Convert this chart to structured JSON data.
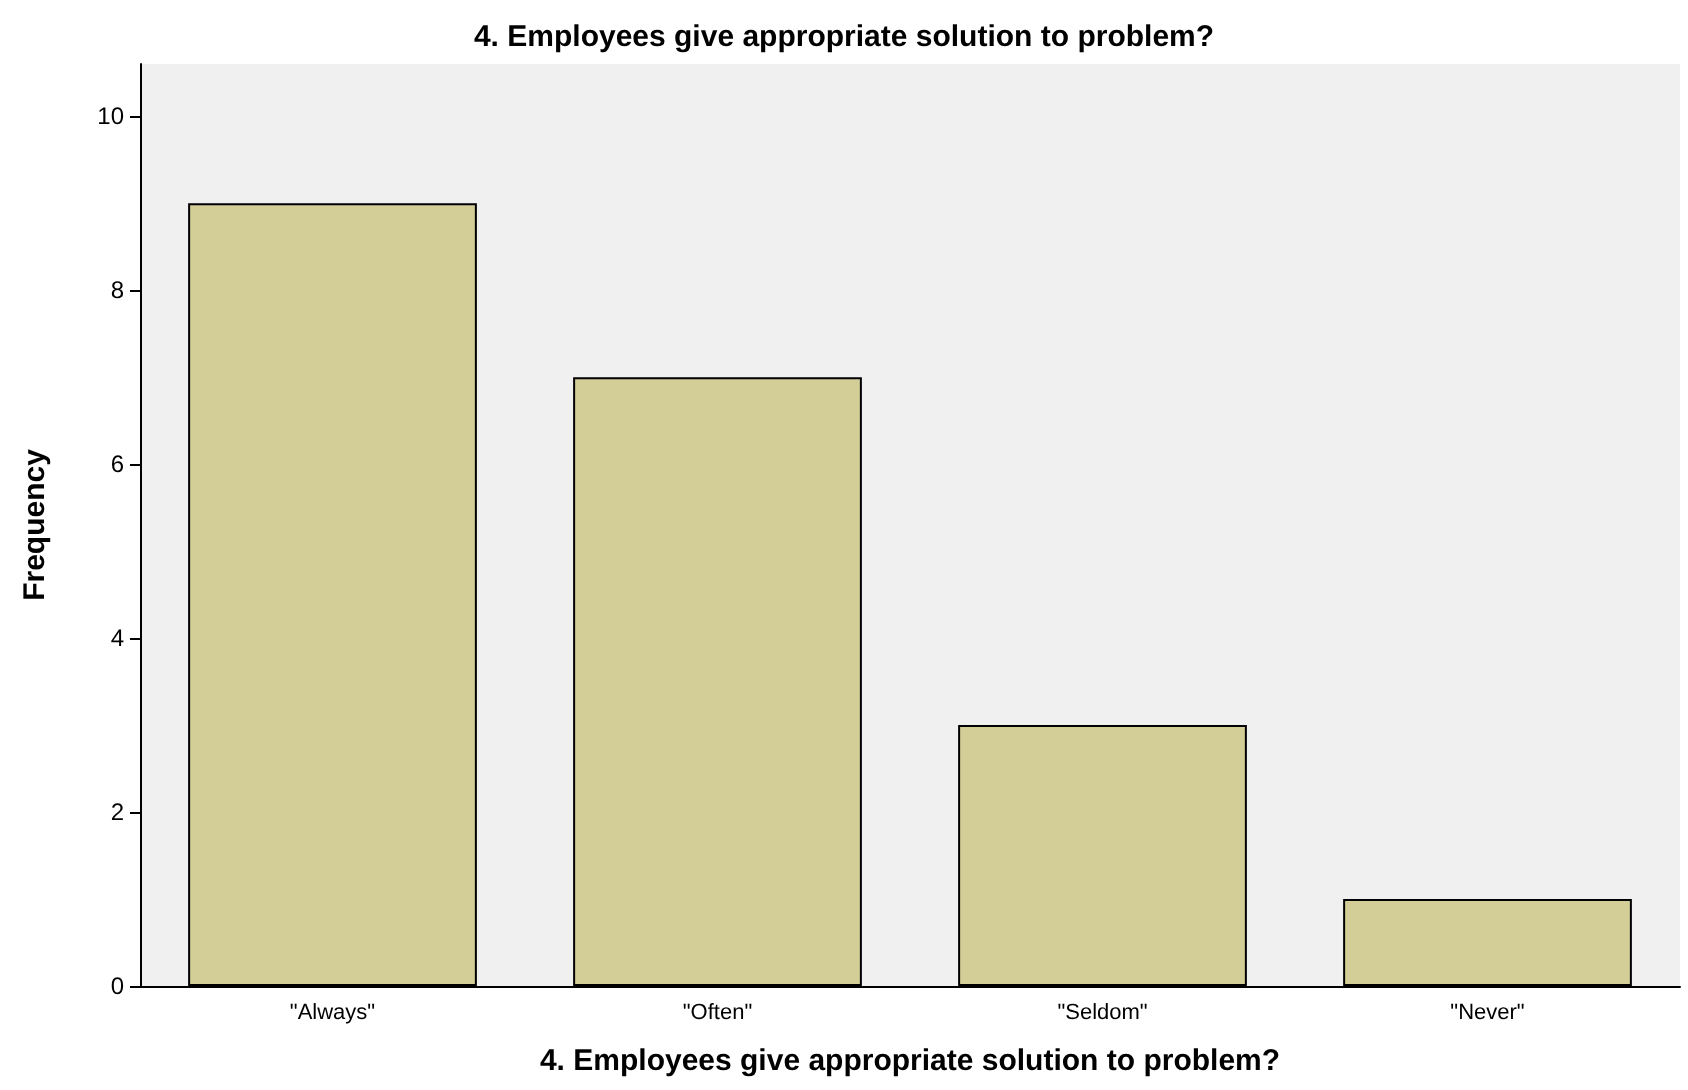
{
  "chart_data": {
    "type": "bar",
    "title": "4. Employees give appropriate solution to problem?",
    "xlabel": "4. Employees give appropriate solution to problem?",
    "ylabel": "Frequency",
    "categories": [
      "\"Always\"",
      "\"Often\"",
      "\"Seldom\"",
      "\"Never\""
    ],
    "values": [
      9,
      7,
      3,
      1
    ],
    "color": "#d3ce97",
    "ylim": [
      0,
      10.6
    ],
    "yticks": [
      0,
      2,
      4,
      6,
      8,
      10
    ],
    "grid": false
  }
}
